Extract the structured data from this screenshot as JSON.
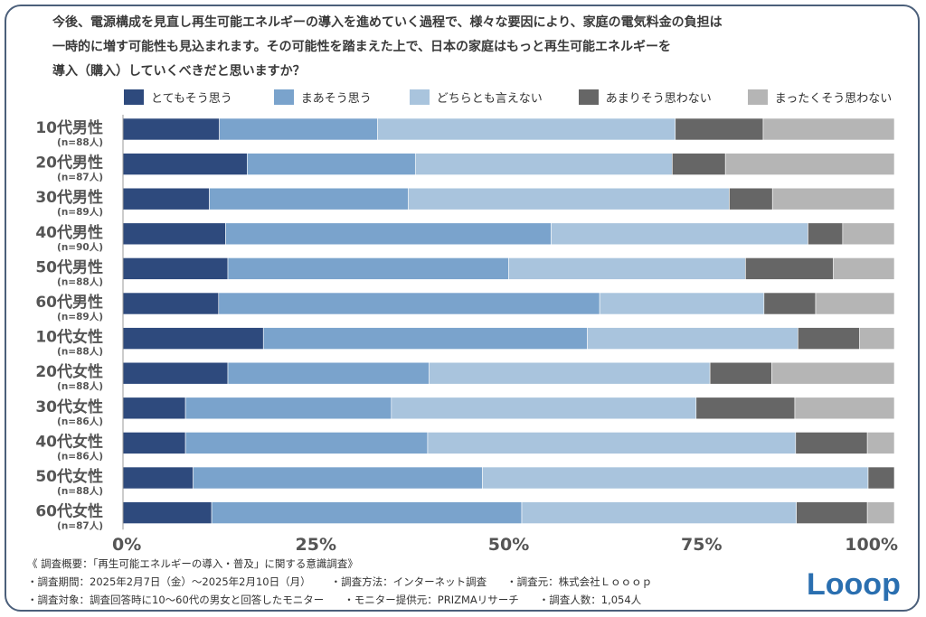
{
  "question": {
    "line1": "今後、電源構成を見直し再生可能エネルギーの導入を進めていく過程で、様々な要因により、家庭の電気料金の負担は",
    "line2": "一時的に増す可能性も見込まれます。その可能性を踏まえた上で、日本の家庭はもっと再生可能エネルギーを",
    "line3": "導入（購入）していくべきだと思いますか？"
  },
  "colors": {
    "series": [
      "#2e4a7d",
      "#7aa3cc",
      "#a9c4dd",
      "#666666",
      "#b5b5b5"
    ],
    "frame": "#4b5f7a",
    "logo": "#2a6fb0"
  },
  "chart_data": {
    "type": "bar",
    "orientation": "horizontal",
    "stacked": true,
    "percent": true,
    "categories": [
      "10代男性",
      "20代男性",
      "30代男性",
      "40代男性",
      "50代男性",
      "60代男性",
      "10代女性",
      "20代女性",
      "30代女性",
      "40代女性",
      "50代女性",
      "60代女性"
    ],
    "sample_sizes": [
      "(n=88人)",
      "(n=87人)",
      "(n=89人)",
      "(n=90人)",
      "(n=88人)",
      "(n=89人)",
      "(n=88人)",
      "(n=88人)",
      "(n=86人)",
      "(n=86人)",
      "(n=88人)",
      "(n=87人)"
    ],
    "series": [
      {
        "name": "とてもそう思う",
        "values": [
          12.5,
          16.1,
          11.2,
          13.3,
          13.6,
          12.4,
          18.2,
          13.6,
          8.1,
          8.1,
          9.1,
          11.5
        ]
      },
      {
        "name": "まあそう思う",
        "values": [
          20.5,
          21.8,
          25.8,
          42.2,
          36.4,
          49.4,
          42.0,
          26.1,
          26.7,
          31.4,
          37.5,
          40.2
        ]
      },
      {
        "name": "どちらとも言えない",
        "values": [
          38.6,
          33.3,
          41.6,
          33.3,
          30.7,
          21.3,
          27.3,
          36.4,
          39.5,
          47.7,
          50.0,
          35.6
        ]
      },
      {
        "name": "あまりそう思わない",
        "values": [
          11.4,
          6.9,
          5.6,
          4.5,
          11.4,
          6.7,
          8.0,
          8.0,
          12.8,
          9.3,
          3.4,
          9.2
        ]
      },
      {
        "name": "まったくそう思わない",
        "values": [
          17.0,
          21.9,
          15.8,
          6.7,
          7.9,
          10.2,
          4.5,
          15.9,
          12.9,
          3.5,
          0.0,
          3.5
        ]
      }
    ],
    "xlim": [
      0,
      100
    ],
    "xticks": [
      "0%",
      "25%",
      "50%",
      "75%",
      "100%"
    ],
    "grid": false,
    "legend": "top"
  },
  "footer": {
    "line1": "《 調査概要：「再生可能エネルギーの導入・普及」に関する意識調査》",
    "period": "・調査期間：2025年2月7日（金）～2025年2月10日（月）",
    "method": "・調査方法：インターネット調査",
    "source": "・調査元：株式会社Ｌｏｏｏｐ",
    "target": "・調査対象：調査回答時に10～60代の男女と回答したモニター",
    "provider": "・モニター提供元：PRIZMAリサーチ",
    "count": "・調査人数：1,054人"
  },
  "logo": {
    "text": "Looop"
  }
}
